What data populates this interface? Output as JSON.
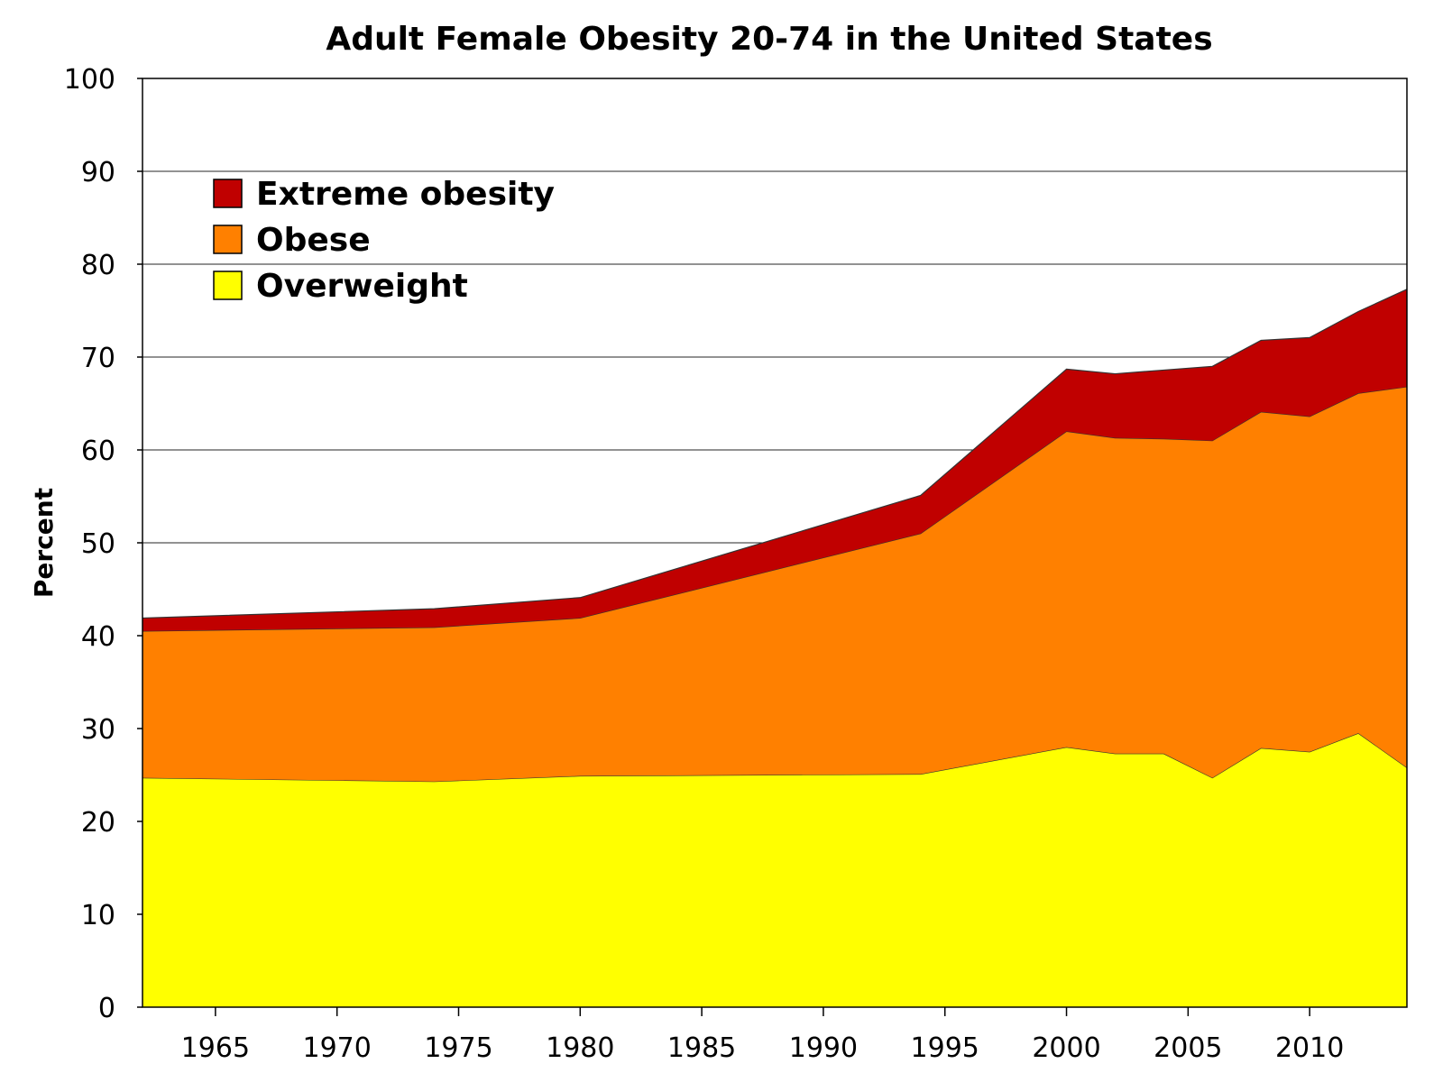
{
  "chart_data": {
    "type": "area",
    "stacked": true,
    "title": "Adult Female Obesity 20-74 in the United States",
    "xlabel": "",
    "ylabel": "Percent",
    "xlim": [
      1962,
      2014
    ],
    "ylim": [
      0,
      100
    ],
    "x_ticks": [
      1965,
      1970,
      1975,
      1980,
      1985,
      1990,
      1995,
      2000,
      2005,
      2010
    ],
    "y_ticks": [
      0,
      10,
      20,
      30,
      40,
      50,
      60,
      70,
      80,
      90,
      100
    ],
    "grid": true,
    "legend_position": "top-left",
    "x": [
      1962,
      1974,
      1980,
      1994,
      2000,
      2002,
      2004,
      2006,
      2008,
      2010,
      2012,
      2014
    ],
    "series": [
      {
        "name": "Overweight",
        "color": "#ffff00",
        "values": [
          24.7,
          24.3,
          24.9,
          25.1,
          28.0,
          27.3,
          27.3,
          24.7,
          27.9,
          27.5,
          29.5,
          25.8
        ]
      },
      {
        "name": "Obese",
        "color": "#ff8000",
        "values": [
          15.8,
          16.6,
          17.0,
          25.9,
          34.0,
          34.0,
          33.9,
          36.3,
          36.2,
          36.1,
          36.6,
          41.0
        ]
      },
      {
        "name": "Extreme obesity",
        "color": "#c00000",
        "values": [
          1.4,
          2.0,
          2.2,
          4.1,
          6.7,
          6.9,
          7.4,
          8.0,
          7.7,
          8.5,
          8.8,
          10.5
        ]
      }
    ],
    "legend_order": [
      "Extreme obesity",
      "Obese",
      "Overweight"
    ]
  }
}
